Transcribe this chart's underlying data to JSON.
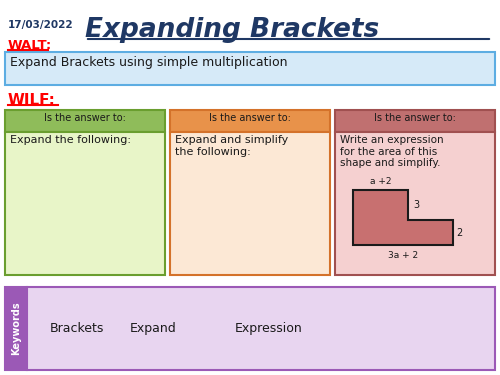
{
  "title": "Expanding Brackets",
  "date": "17/03/2022",
  "walt_label": "WALT:",
  "walt_text": "Expand Brackets using simple multiplication",
  "wilf_label": "WILF:",
  "box1_header": "Is the answer to:",
  "box1_body": "Expand the following:",
  "box2_header": "Is the answer to:",
  "box2_body": "Expand and simplify\nthe following:",
  "box3_header": "Is the answer to:",
  "box3_body": "Write an expression\nfor the area of this\nshape and simplify.",
  "box3_shape_top": "a +2",
  "box3_shape_dim1": "3",
  "box3_shape_dim2": "2",
  "box3_shape_bottom": "3a + 2",
  "keywords_label": "Keywords",
  "keywords": [
    "Brackets",
    "Expand",
    "Expression"
  ],
  "bg_color": "#ffffff",
  "title_color": "#1f3864",
  "walt_color": "#ff0000",
  "wilf_color": "#ff0000",
  "walt_box_bg": "#d6eaf8",
  "walt_box_border": "#5dade2",
  "box1_header_bg": "#8fbc5a",
  "box1_body_bg": "#e8f5c8",
  "box1_border": "#6a9e2f",
  "box2_header_bg": "#e8924a",
  "box2_body_bg": "#fce8d5",
  "box2_border": "#d4722a",
  "box3_header_bg": "#c07070",
  "box3_body_bg": "#f5d0d0",
  "box3_border": "#a05050",
  "shape_fill": "#c87070",
  "shape_border": "#1a1a1a",
  "keywords_bg": "#e8d5f0",
  "keywords_border": "#9b59b6",
  "keywords_label_bg": "#9b59b6",
  "keywords_label_color": "#ffffff"
}
